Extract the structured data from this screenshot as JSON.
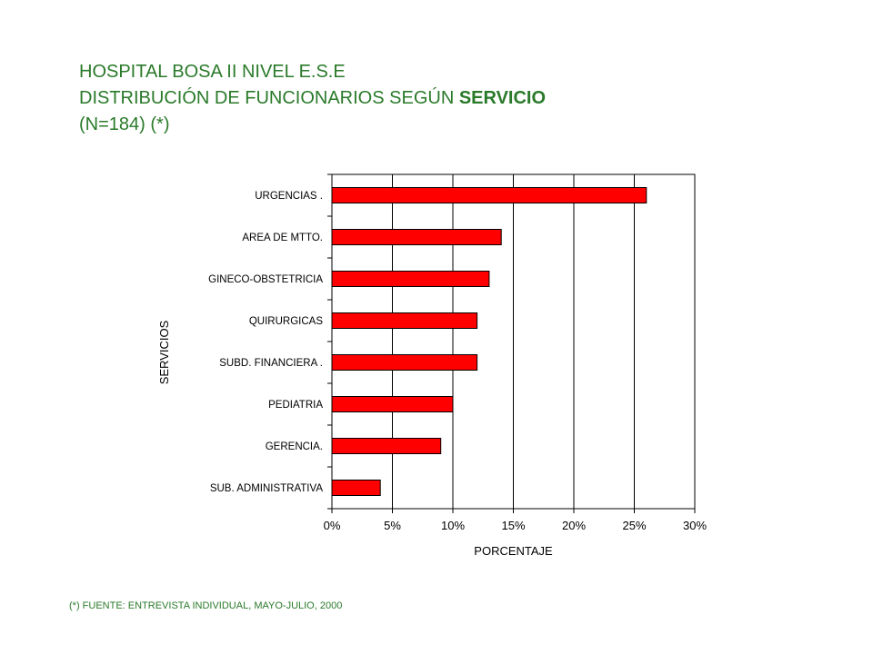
{
  "title": {
    "line1": "HOSPITAL BOSA II NIVEL E.S.E",
    "line2_prefix": "DISTRIBUCIÓN DE FUNCIONARIOS SEGÚN ",
    "line2_bold": "SERVICIO",
    "line3": "(N=184) (*)"
  },
  "footnote": "(*) FUENTE: ENTREVISTA INDIVIDUAL, MAYO-JULIO, 2000",
  "colors": {
    "title": "#2a7a2a",
    "bar": "#ff0000",
    "bar_stroke": "#000000",
    "grid": "#000000"
  },
  "chart_data": {
    "type": "bar",
    "orientation": "horizontal",
    "xlabel": "PORCENTAJE",
    "ylabel": "SERVICIOS",
    "xlim": [
      0,
      30
    ],
    "x_ticks": [
      "0%",
      "5%",
      "10%",
      "15%",
      "20%",
      "25%",
      "30%"
    ],
    "grid": true,
    "categories": [
      "URGENCIAS .",
      "AREA DE MTTO.",
      "GINECO-OBSTETRICIA",
      "QUIRURGICAS",
      "SUBD. FINANCIERA .",
      "PEDIATRIA",
      "GERENCIA.",
      "SUB. ADMINISTRATIVA"
    ],
    "values": [
      26,
      14,
      13,
      12,
      12,
      10,
      9,
      4
    ]
  }
}
